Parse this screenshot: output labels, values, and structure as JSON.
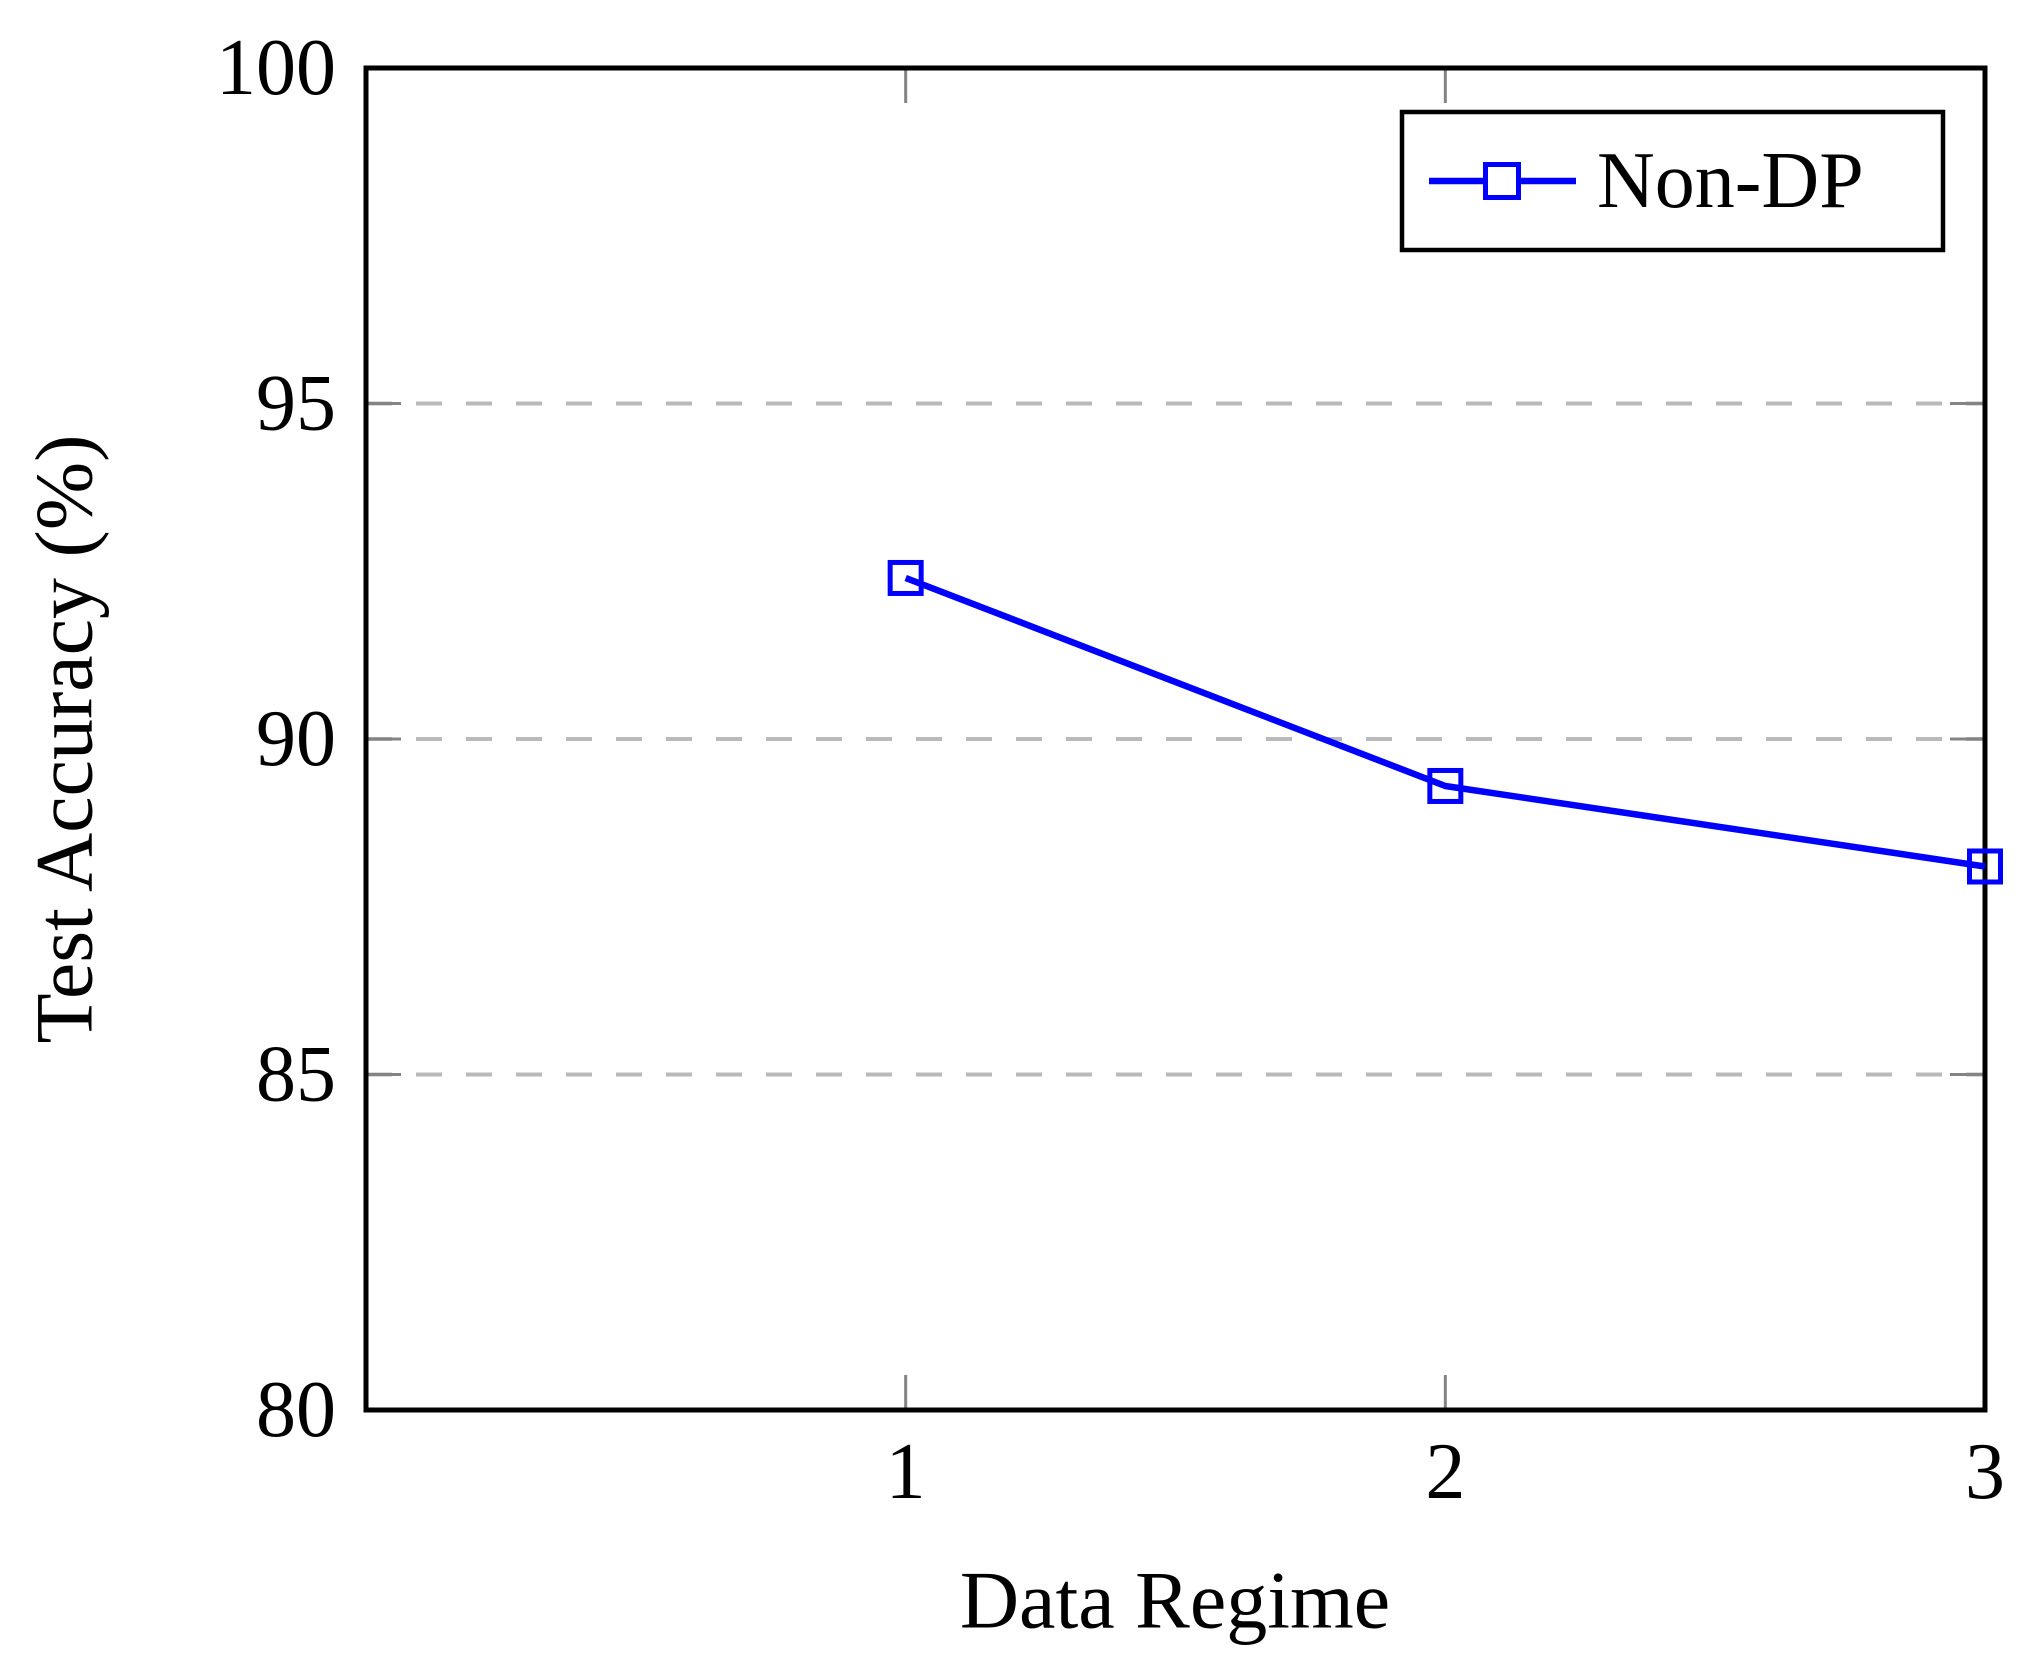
{
  "chart_data": {
    "type": "line",
    "title": "",
    "xlabel": "Data Regime",
    "ylabel": "Test Accuracy (%)",
    "x": [
      1,
      2,
      3
    ],
    "series": [
      {
        "name": "Non-DP",
        "values": [
          92.4,
          89.3,
          88.1
        ],
        "color": "#0000ff",
        "marker": "open-square"
      }
    ],
    "xlim": [
      0,
      3
    ],
    "ylim": [
      80,
      100
    ],
    "xticks": [
      1,
      2,
      3
    ],
    "yticks": [
      80,
      85,
      90,
      95,
      100
    ],
    "gridlines_y": [
      85,
      90,
      95
    ],
    "grid_style": "dashed",
    "grid_on": true,
    "legend": {
      "position": "top-right",
      "entries": [
        "Non-DP"
      ]
    },
    "colors": {
      "axis_frame": "#000000",
      "grid": "#b9b9b9",
      "tick": "#848484",
      "line": "#0000ff",
      "text": "#000000",
      "background": "#ffffff"
    }
  }
}
